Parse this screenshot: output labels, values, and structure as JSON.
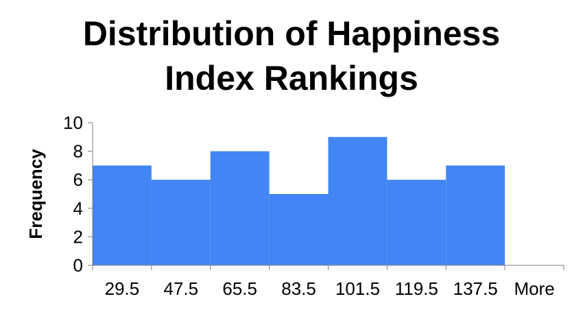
{
  "chart_data": {
    "type": "bar",
    "title": "Distribution of Happiness Index Rankings",
    "title_lines": [
      "Distribution of Happiness",
      "Index Rankings"
    ],
    "xlabel": "",
    "ylabel": "Frequency",
    "categories": [
      "29.5",
      "47.5",
      "65.5",
      "83.5",
      "101.5",
      "119.5",
      "137.5",
      "More"
    ],
    "values": [
      7,
      6,
      8,
      5,
      9,
      6,
      7,
      0
    ],
    "ylim": [
      0,
      10
    ],
    "yticks": [
      0,
      2,
      4,
      6,
      8,
      10
    ],
    "bar_color": "#4285f4",
    "grid": false,
    "legend": "none"
  }
}
